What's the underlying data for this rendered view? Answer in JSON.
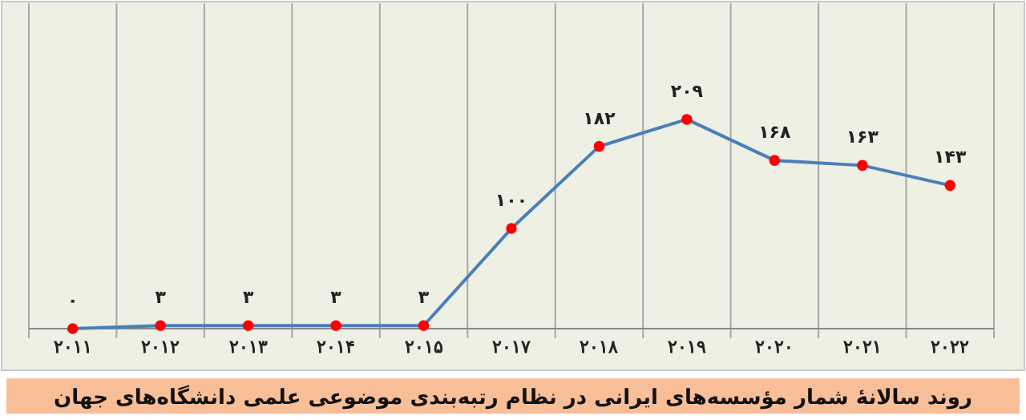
{
  "chart_data": {
    "type": "line",
    "title": "روند سالانهٔ شمار مؤسسه‌های ایرانی در نظام رتبه‌بندی موضوعی علمی دانشگاه‌های جهان",
    "categories": [
      "۲۰۱۱",
      "۲۰۱۲",
      "۲۰۱۳",
      "۲۰۱۴",
      "۲۰۱۵",
      "۲۰۱۷",
      "۲۰۱۸",
      "۲۰۱۹",
      "۲۰۲۰",
      "۲۰۲۱",
      "۲۰۲۲"
    ],
    "series": [
      {
        "color": "#4a7ebb",
        "values": [
          0,
          3,
          3,
          3,
          3,
          100,
          182,
          209,
          168,
          163,
          143
        ],
        "value_labels": [
          "۰",
          "۳",
          "۳",
          "۳",
          "۳",
          "۱۰۰",
          "۱۸۲",
          "۲۰۹",
          "۱۶۸",
          "۱۶۳",
          "۱۴۳"
        ]
      }
    ],
    "ylim": [
      0,
      325
    ],
    "tick_labels": "x",
    "grid": "x",
    "marker": "circle",
    "line_style": "solid"
  }
}
